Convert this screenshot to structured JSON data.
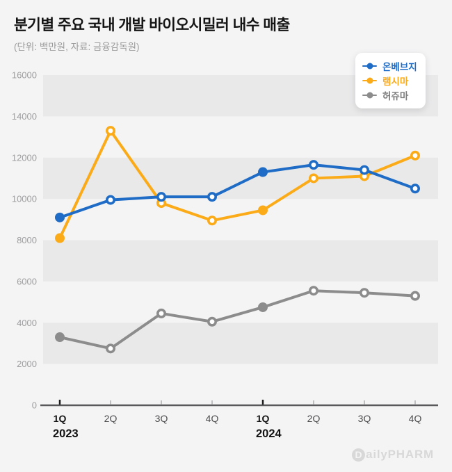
{
  "header": {
    "title": "분기별 주요 국내 개발 바이오시밀러 내수 매출",
    "subtitle": "(단위: 백만원, 자료: 금융감독원)"
  },
  "legend": {
    "items": [
      {
        "label": "온베브지",
        "color": "#1e6cc5"
      },
      {
        "label": "램시마",
        "color": "#fbab18"
      },
      {
        "label": "허쥬마",
        "color": "#8c8c8c"
      }
    ]
  },
  "footer": {
    "logo_d": "D",
    "logo_text": "ailyPHARM"
  },
  "chart_data": {
    "type": "line",
    "title": "분기별 주요 국내 개발 바이오시밀러 내수 매출",
    "unit_note": "(단위: 백만원, 자료: 금융감독원)",
    "categories": [
      "1Q",
      "2Q",
      "3Q",
      "4Q",
      "1Q",
      "2Q",
      "3Q",
      "4Q"
    ],
    "year_labels": [
      {
        "index": 0,
        "year": "2023"
      },
      {
        "index": 4,
        "year": "2024"
      }
    ],
    "series": [
      {
        "name": "온베브지",
        "color": "#1e6cc5",
        "values": [
          9100,
          9950,
          10100,
          10100,
          11300,
          11650,
          11400,
          10500
        ]
      },
      {
        "name": "램시마",
        "color": "#fbab18",
        "values": [
          8100,
          13300,
          9800,
          8950,
          9450,
          11000,
          11100,
          12100
        ]
      },
      {
        "name": "허쥬마",
        "color": "#8c8c8c",
        "values": [
          3300,
          2750,
          4450,
          4050,
          4750,
          5550,
          5450,
          5300
        ]
      }
    ],
    "filled_marker_indices": [
      0,
      4
    ],
    "ylabel": "",
    "xlabel": "",
    "ylim": [
      0,
      16000
    ],
    "ytick_step": 2000,
    "grid": "striped-bands",
    "band_color_dark": "#e9e9ea",
    "legend_position": "top-right"
  }
}
